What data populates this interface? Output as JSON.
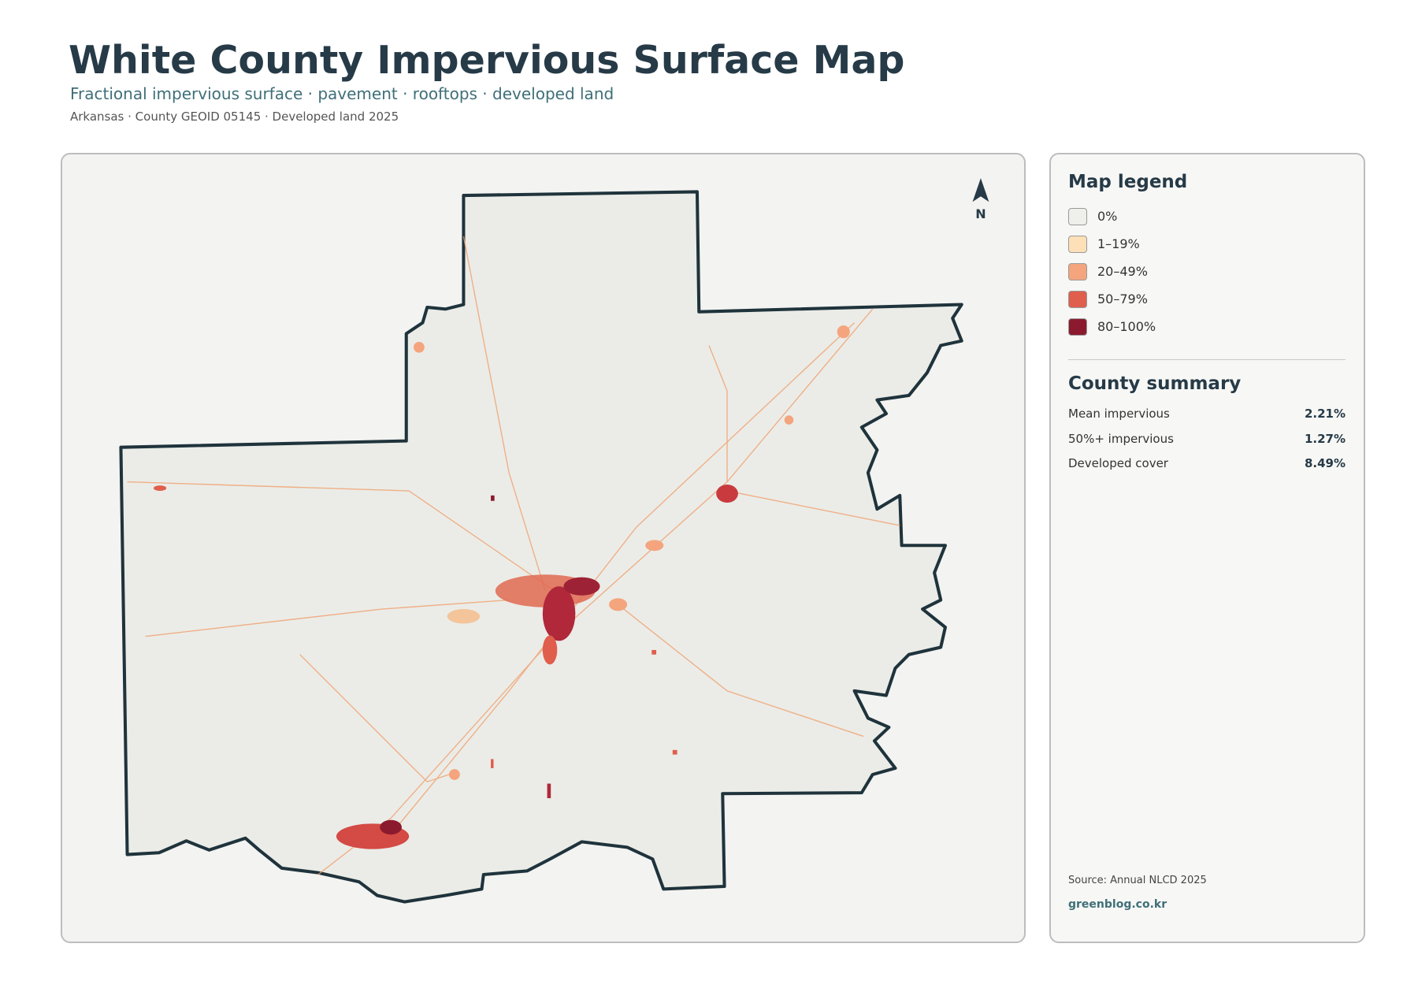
{
  "header": {
    "title": "White County Impervious Surface Map",
    "subtitle": "Fractional impervious surface · pavement · rooftops · developed land",
    "meta": "Arkansas · County GEOID 05145 · Developed land 2025"
  },
  "map": {
    "north_label": "N"
  },
  "legend": {
    "title": "Map legend",
    "items": [
      {
        "label": "0%",
        "color": "#efefeb"
      },
      {
        "label": "1–19%",
        "color": "#fde0b8"
      },
      {
        "label": "20–49%",
        "color": "#f4a57e"
      },
      {
        "label": "50–79%",
        "color": "#df5e4c"
      },
      {
        "label": "80–100%",
        "color": "#8b1a2e"
      }
    ]
  },
  "summary": {
    "title": "County summary",
    "rows": [
      {
        "label": "Mean impervious",
        "value": "2.21%"
      },
      {
        "label": "50%+ impervious",
        "value": "1.27%"
      },
      {
        "label": "Developed cover",
        "value": "8.49%"
      }
    ]
  },
  "footer": {
    "source": "Source: Annual NLCD 2025",
    "site": "greenblog.co.kr"
  }
}
